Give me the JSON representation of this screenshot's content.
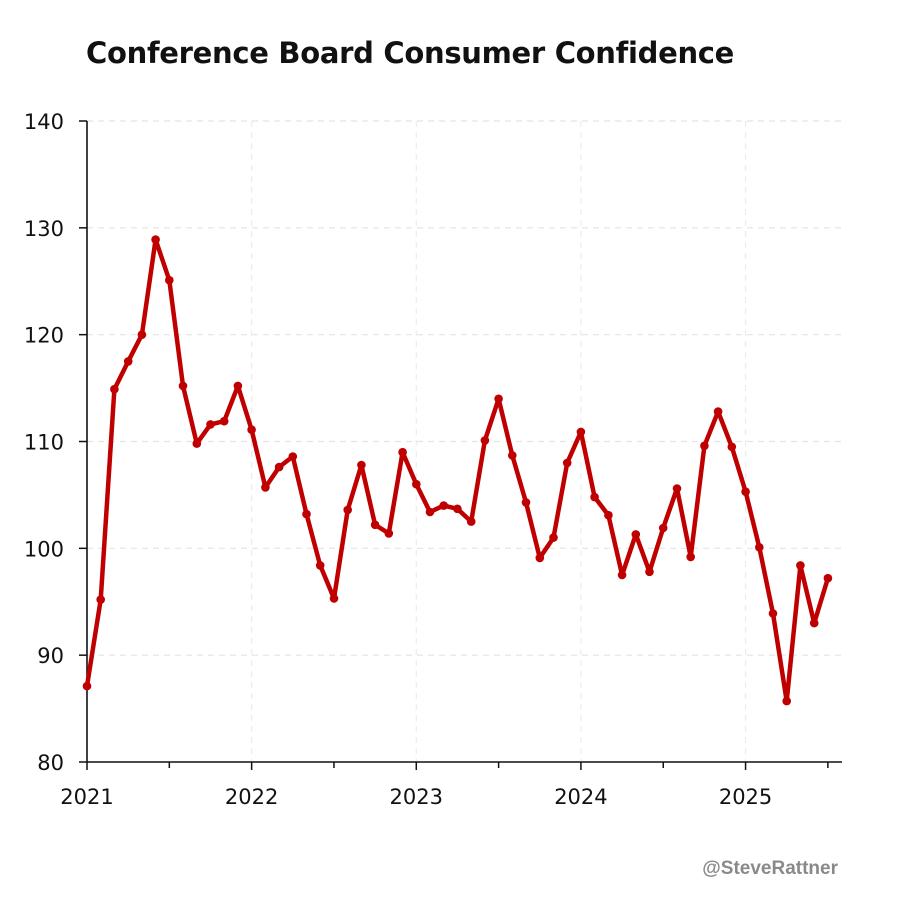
{
  "title": "Conference Board Consumer Confidence",
  "credit": "@SteveRattner",
  "chart_data": {
    "type": "line",
    "title": "Conference Board Consumer Confidence",
    "xlabel": "",
    "ylabel": "",
    "ylim": [
      80,
      140
    ],
    "yticks": [
      80,
      90,
      100,
      110,
      120,
      130,
      140
    ],
    "xticks": [
      "2021",
      "2022",
      "2023",
      "2024",
      "2025"
    ],
    "grid": true,
    "line_color": "#c00000",
    "series": [
      {
        "x": [
          "2021-01",
          "2021-02",
          "2021-03",
          "2021-04",
          "2021-05",
          "2021-06",
          "2021-07",
          "2021-08",
          "2021-09",
          "2021-10",
          "2021-11",
          "2021-12",
          "2022-01",
          "2022-02",
          "2022-03",
          "2022-04",
          "2022-05",
          "2022-06",
          "2022-07",
          "2022-08",
          "2022-09",
          "2022-10",
          "2022-11",
          "2022-12",
          "2023-01",
          "2023-02",
          "2023-03",
          "2023-04",
          "2023-05",
          "2023-06",
          "2023-07",
          "2023-08",
          "2023-09",
          "2023-10",
          "2023-11",
          "2023-12",
          "2024-01",
          "2024-02",
          "2024-03",
          "2024-04",
          "2024-05",
          "2024-06",
          "2024-07",
          "2024-08",
          "2024-09",
          "2024-10",
          "2024-11",
          "2024-12",
          "2025-01",
          "2025-02",
          "2025-03",
          "2025-04",
          "2025-05",
          "2025-06",
          "2025-07"
        ],
        "values": [
          87.1,
          95.2,
          114.9,
          117.5,
          120.0,
          128.9,
          125.1,
          115.2,
          109.8,
          111.6,
          111.9,
          115.2,
          111.1,
          105.7,
          107.6,
          108.6,
          103.2,
          98.4,
          95.3,
          103.6,
          107.8,
          102.2,
          101.4,
          109.0,
          106.0,
          103.4,
          104.0,
          103.7,
          102.5,
          110.1,
          114.0,
          108.7,
          104.3,
          99.1,
          101.0,
          108.0,
          110.9,
          104.8,
          103.1,
          97.5,
          101.3,
          97.8,
          101.9,
          105.6,
          99.2,
          109.6,
          112.8,
          109.5,
          105.3,
          100.1,
          93.9,
          85.7,
          98.4,
          93.0,
          97.2
        ]
      }
    ]
  }
}
